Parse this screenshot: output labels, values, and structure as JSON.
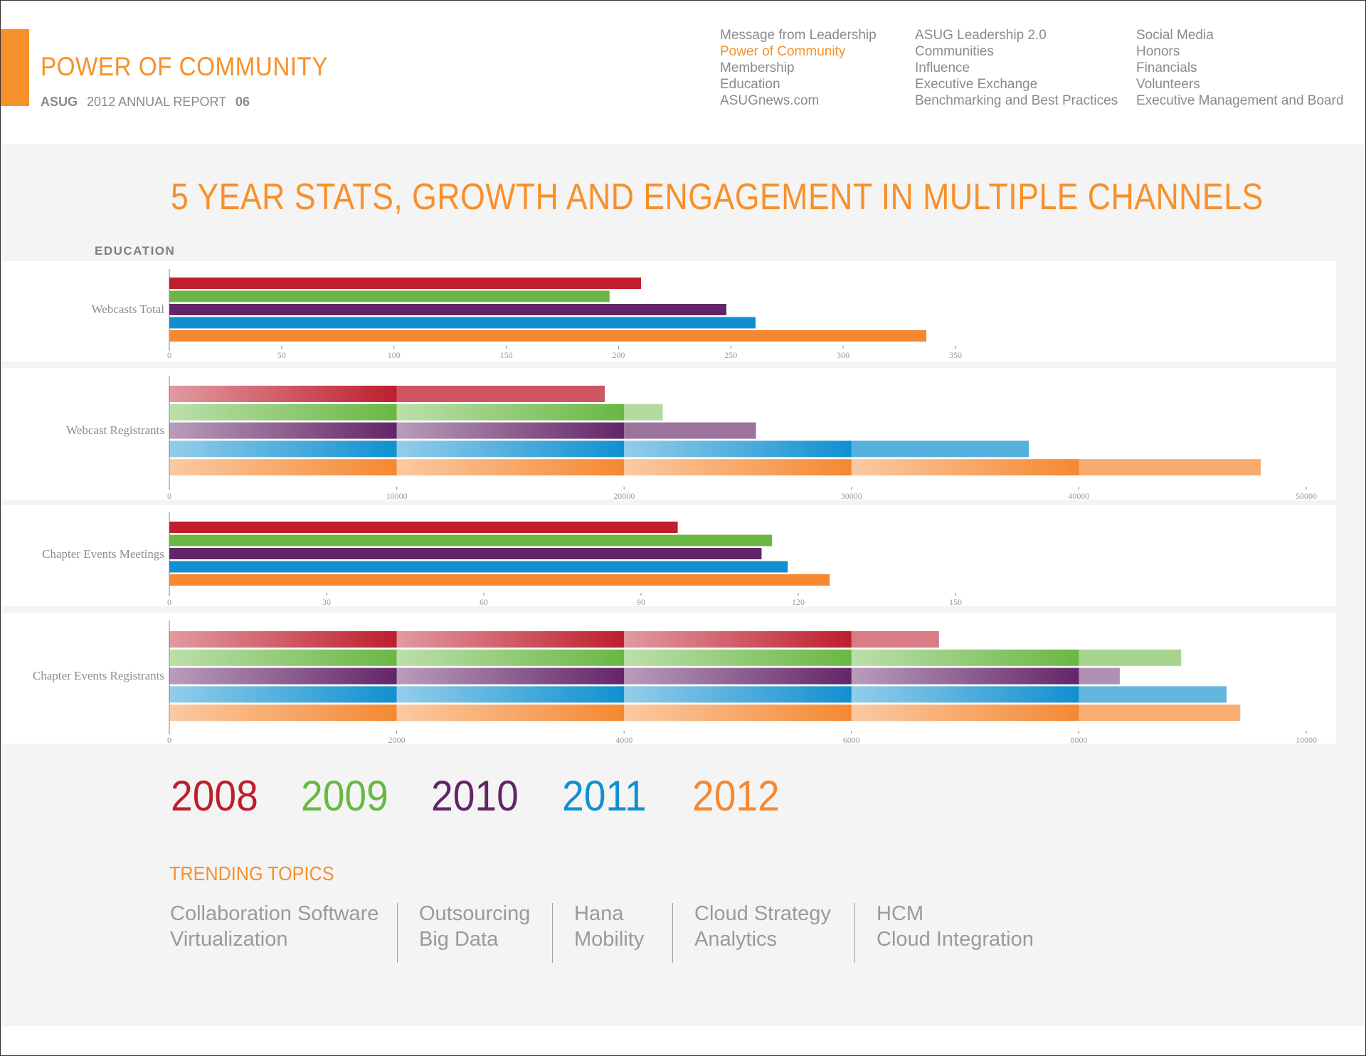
{
  "header": {
    "section_title": "POWER OF COMMUNITY",
    "brand": "ASUG",
    "report_label": "2012 ANNUAL REPORT",
    "page_number": "06",
    "accent_color": "#f7902a"
  },
  "nav": {
    "columns": [
      [
        "Message from Leadership",
        "Power of Community",
        "Membership",
        "Education",
        "ASUGnews.com"
      ],
      [
        "ASUG Leadership 2.0",
        "Communities",
        "Influence",
        "Executive Exchange",
        "Benchmarking and Best Practices"
      ],
      [
        "Social Media",
        "Honors",
        "Financials",
        "Volunteers",
        "Executive Management and Board"
      ]
    ],
    "active": "Power of Community"
  },
  "main_title": "5 YEAR STATS, GROWTH AND ENGAGEMENT IN MULTIPLE CHANNELS",
  "section_label": "EDUCATION",
  "trending": {
    "title": "TRENDING TOPICS",
    "columns": [
      [
        "Collaboration Software",
        "Virtualization"
      ],
      [
        "Outsourcing",
        "Big Data"
      ],
      [
        "Hana",
        "Mobility"
      ],
      [
        "Cloud Strategy",
        "Analytics"
      ],
      [
        "HCM",
        "Cloud Integration"
      ]
    ]
  },
  "chart_data": {
    "type": "bar",
    "orientation": "horizontal",
    "title": "5 YEAR STATS, GROWTH AND ENGAGEMENT IN MULTIPLE CHANNELS",
    "group_label": "EDUCATION",
    "legend": {
      "placement": "bottom-left",
      "entries": [
        {
          "name": "2008",
          "color": "#be1e2d"
        },
        {
          "name": "2009",
          "color": "#6ab744"
        },
        {
          "name": "2010",
          "color": "#632567"
        },
        {
          "name": "2011",
          "color": "#1090d0"
        },
        {
          "name": "2012",
          "color": "#f58831"
        }
      ]
    },
    "panels": [
      {
        "label": "Webcasts Total",
        "style": "solid",
        "xlim": [
          0,
          350
        ],
        "ticks": [
          0,
          50,
          100,
          150,
          200,
          250,
          300,
          350
        ],
        "series": [
          {
            "name": "2008",
            "value": 210
          },
          {
            "name": "2009",
            "value": 196
          },
          {
            "name": "2010",
            "value": 248
          },
          {
            "name": "2011",
            "value": 261
          },
          {
            "name": "2012",
            "value": 337
          }
        ]
      },
      {
        "label": "Webcast Registrants",
        "style": "segmented",
        "segment": 10000,
        "xlim": [
          0,
          50000
        ],
        "ticks": [
          0,
          10000,
          20000,
          30000,
          40000,
          50000
        ],
        "series": [
          {
            "name": "2008",
            "value": 19150
          },
          {
            "name": "2009",
            "value": 21700
          },
          {
            "name": "2010",
            "value": 25800
          },
          {
            "name": "2011",
            "value": 37800
          },
          {
            "name": "2012",
            "value": 48000
          }
        ]
      },
      {
        "label": "Chapter Events Meetings",
        "style": "solid",
        "xlim": [
          0,
          150
        ],
        "ticks": [
          0,
          30,
          60,
          90,
          120,
          150
        ],
        "series": [
          {
            "name": "2008",
            "value": 97
          },
          {
            "name": "2009",
            "value": 115
          },
          {
            "name": "2010",
            "value": 113
          },
          {
            "name": "2011",
            "value": 118
          },
          {
            "name": "2012",
            "value": 126
          }
        ]
      },
      {
        "label": "Chapter Events Registrants",
        "style": "segmented",
        "segment": 2000,
        "xlim": [
          0,
          10000
        ],
        "ticks": [
          0,
          2000,
          4000,
          6000,
          8000,
          10000
        ],
        "series": [
          {
            "name": "2008",
            "value": 6770
          },
          {
            "name": "2009",
            "value": 8900
          },
          {
            "name": "2010",
            "value": 8360
          },
          {
            "name": "2011",
            "value": 9300
          },
          {
            "name": "2012",
            "value": 9420
          }
        ]
      }
    ]
  }
}
